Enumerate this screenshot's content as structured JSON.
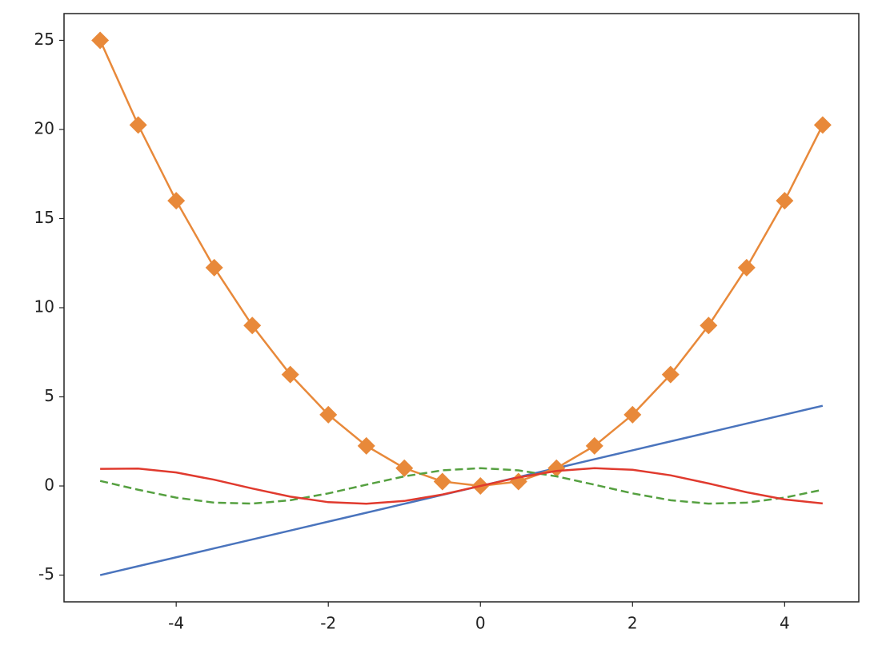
{
  "chart_data": {
    "type": "line",
    "x": [
      -5,
      -4.5,
      -4,
      -3.5,
      -3,
      -2.5,
      -2,
      -1.5,
      -1,
      -0.5,
      0,
      0.5,
      1,
      1.5,
      2,
      2.5,
      3,
      3.5,
      4,
      4.5
    ],
    "series": [
      {
        "color": "#4a74bd",
        "linestyle": "solid",
        "values": [
          -5,
          -4.5,
          -4,
          -3.5,
          -3,
          -2.5,
          -2,
          -1.5,
          -1,
          -0.5,
          0,
          0.5,
          1,
          1.5,
          2,
          2.5,
          3,
          3.5,
          4,
          4.5
        ]
      },
      {
        "color": "#e8893a",
        "linestyle": "solid",
        "marker": "diamond",
        "values": [
          25,
          20.25,
          16,
          12.25,
          9,
          6.25,
          4,
          2.25,
          1,
          0.25,
          0,
          0.25,
          1,
          2.25,
          4,
          6.25,
          9,
          12.25,
          16,
          20.25
        ]
      },
      {
        "color": "#55a040",
        "linestyle": "dashed",
        "values": [
          0.2837,
          -0.2108,
          -0.6536,
          -0.9365,
          -0.99,
          -0.8011,
          -0.4161,
          0.0707,
          0.5403,
          0.8776,
          1,
          0.8776,
          0.5403,
          0.0707,
          -0.4161,
          -0.8011,
          -0.99,
          -0.9365,
          -0.6536,
          -0.2108
        ]
      },
      {
        "color": "#e03a2e",
        "linestyle": "solid",
        "values": [
          0.9589,
          0.9775,
          0.7568,
          0.3508,
          -0.1411,
          -0.5985,
          -0.9093,
          -0.9975,
          -0.8415,
          -0.4794,
          0,
          0.4794,
          0.8415,
          0.9975,
          0.9093,
          0.5985,
          0.1411,
          -0.3508,
          -0.7568,
          -0.9775
        ]
      }
    ],
    "xlim": [
      -5.475,
      4.975
    ],
    "xticks": [
      -4,
      -2,
      0,
      2,
      4
    ],
    "ylim": [
      -6.5,
      26.5
    ],
    "yticks": [
      -5,
      0,
      5,
      10,
      15,
      20,
      25
    ],
    "grid": false
  }
}
